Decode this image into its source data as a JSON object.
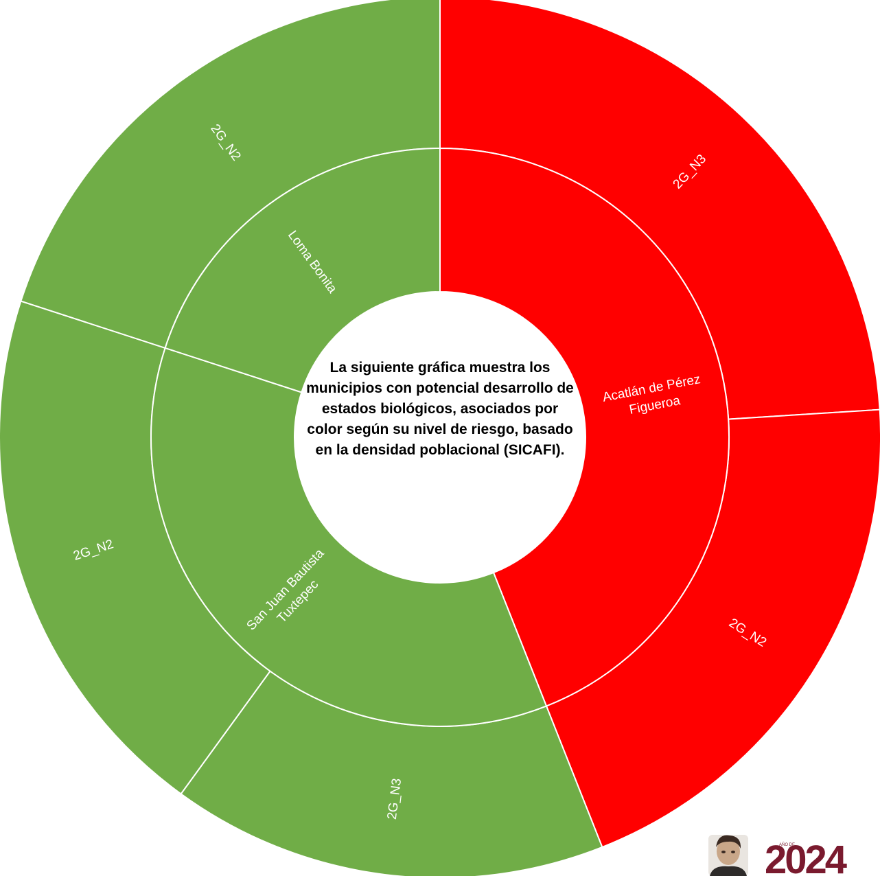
{
  "chart_data": {
    "type": "sunburst",
    "center_text": "La siguiente gráfica muestra los municipios con potencial desarrollo de estados biológicos,  asociados por color según su nivel de riesgo, basado en la densidad poblacional (SICAFI).",
    "colors": {
      "green": "#70ad47",
      "red": "#ff0000",
      "separator": "#ffffff"
    },
    "inner_ring": [
      {
        "label": "Acatlán de Pérez Figueroa",
        "value": 44,
        "color": "#ff0000"
      },
      {
        "label": "San Juan Bautista Tuxtepec",
        "value": 36,
        "color": "#70ad47"
      },
      {
        "label": "Loma Bonita",
        "value": 20,
        "color": "#70ad47"
      }
    ],
    "outer_ring": [
      {
        "label": "2G_N3",
        "parent": "Acatlán de Pérez Figueroa",
        "value": 24,
        "color": "#ff0000"
      },
      {
        "label": "2G_N2",
        "parent": "Acatlán de Pérez Figueroa",
        "value": 20,
        "color": "#ff0000"
      },
      {
        "label": "2G_N3",
        "parent": "San Juan Bautista Tuxtepec",
        "value": 16,
        "color": "#70ad47"
      },
      {
        "label": "2G_N2",
        "parent": "San Juan Bautista Tuxtepec",
        "value": 20,
        "color": "#70ad47"
      },
      {
        "label": "2G_N2",
        "parent": "Loma Bonita",
        "value": 20,
        "color": "#70ad47"
      }
    ]
  },
  "logo": {
    "text": "2024",
    "small_text": "AÑO DE",
    "color": "#7a1a2e"
  }
}
